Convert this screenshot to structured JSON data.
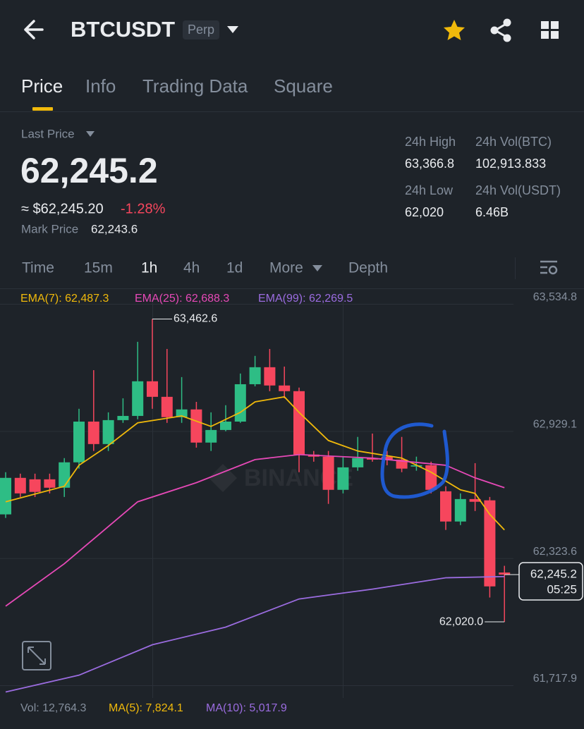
{
  "header": {
    "symbol": "BTCUSDT",
    "badge": "Perp"
  },
  "tabs": [
    "Price",
    "Info",
    "Trading Data",
    "Square"
  ],
  "ticker": {
    "last_price_label": "Last Price",
    "last_price": "62,245.2",
    "usd_price": "≈ $62,245.20",
    "change": "-1.28%",
    "mark_price_label": "Mark Price",
    "mark_price": "62,243.6"
  },
  "stats": [
    {
      "label": "24h High",
      "value": "63,366.8"
    },
    {
      "label": "24h Vol(BTC)",
      "value": "102,913.833"
    },
    {
      "label": "24h Low",
      "value": "62,020"
    },
    {
      "label": "24h Vol(USDT)",
      "value": "6.46B"
    }
  ],
  "intervals": [
    "Time",
    "15m",
    "1h",
    "4h",
    "1d",
    "More",
    "Depth"
  ],
  "volume_indicators": [
    "Vol: 12,764.3",
    "MA(5): 7,824.1",
    "MA(10): 5,017.9"
  ],
  "chart_data": {
    "type": "candlestick",
    "watermark": "BINANCE",
    "up_color": "#2ebd85",
    "down_color": "#f6465d",
    "open": [
      62532,
      62706,
      62699,
      62699,
      62659,
      62780,
      62974,
      62867,
      62981,
      63001,
      63166,
      63092,
      62995,
      63032,
      62874,
      62934,
      62974,
      63152,
      63233,
      63146,
      63119,
      62817,
      62807,
      62649,
      62756,
      62800,
      62807,
      62793,
      62760,
      62766,
      62642,
      62498,
      62605,
      62599,
      62255
    ],
    "high": [
      62733,
      62726,
      62726,
      62726,
      62800,
      63035,
      63219,
      63018,
      63085,
      63354,
      63462.6,
      63320,
      63186,
      63068,
      63018,
      63052,
      63203,
      63287,
      63320,
      63236,
      63136,
      62834,
      62834,
      62807,
      62901,
      62917,
      62834,
      62901,
      62807,
      62783,
      62666,
      62632,
      62776,
      62615,
      62287
    ],
    "low": [
      62515,
      62615,
      62615,
      62632,
      62615,
      62750,
      62834,
      62834,
      62968,
      62985,
      63035,
      62968,
      62968,
      62850,
      62834,
      62928,
      62968,
      63142,
      63119,
      63085,
      62733,
      62783,
      62582,
      62632,
      62740,
      62783,
      62766,
      62733,
      62740,
      62632,
      62458,
      62481,
      62548,
      62136,
      62020.0
    ],
    "close": [
      62706,
      62632,
      62639,
      62659,
      62780,
      62974,
      62867,
      62981,
      63001,
      63166,
      63092,
      62995,
      63032,
      62874,
      62934,
      62974,
      63152,
      63233,
      63146,
      63119,
      62817,
      62807,
      62649,
      62756,
      62800,
      62793,
      62793,
      62750,
      62766,
      62649,
      62498,
      62605,
      62592,
      62189,
      62245.2
    ],
    "series": [
      {
        "name": "EMA(7): 62,487.3",
        "color": "#f0b90b",
        "x": [
          0,
          4,
          5,
          7,
          9,
          12,
          14,
          16,
          17,
          19,
          20,
          22,
          24,
          27,
          29,
          31,
          32,
          33,
          34
        ],
        "values": [
          62592,
          62666,
          62766,
          62860,
          62968,
          63001,
          62951,
          63018,
          63068,
          63092,
          63018,
          62884,
          62834,
          62800,
          62733,
          62649,
          62632,
          62532,
          62458
        ]
      },
      {
        "name": "EMA(25): 62,688.3",
        "color": "#e649b7",
        "x": [
          0,
          4,
          9,
          13,
          17,
          20,
          25,
          30,
          32,
          34
        ],
        "values": [
          62095,
          62297,
          62592,
          62683,
          62793,
          62817,
          62800,
          62766,
          62706,
          62659
        ]
      },
      {
        "name": "EMA(99): 62,269.5",
        "color": "#9b6ce0",
        "x": [
          0,
          5,
          10,
          15,
          20,
          25,
          30,
          34
        ],
        "values": [
          61686,
          61766,
          61911,
          61995,
          62129,
          62176,
          62230,
          62236
        ]
      }
    ],
    "ylim": [
      61717.9,
      63534.8
    ],
    "yticks": [
      {
        "value": 63534.8,
        "label": "63,534.8"
      },
      {
        "value": 62929.1,
        "label": "62,929.1"
      },
      {
        "value": 62323.6,
        "label": "62,323.6"
      },
      {
        "value": 61717.9,
        "label": "61,717.9"
      }
    ],
    "annotations": [
      {
        "value": 63462.6,
        "label": "63,462.6"
      },
      {
        "value": 62020.0,
        "label": "62,020.0"
      }
    ],
    "last_price": {
      "value": 62245.2,
      "label": "62,245.2",
      "countdown": "05:25"
    }
  }
}
